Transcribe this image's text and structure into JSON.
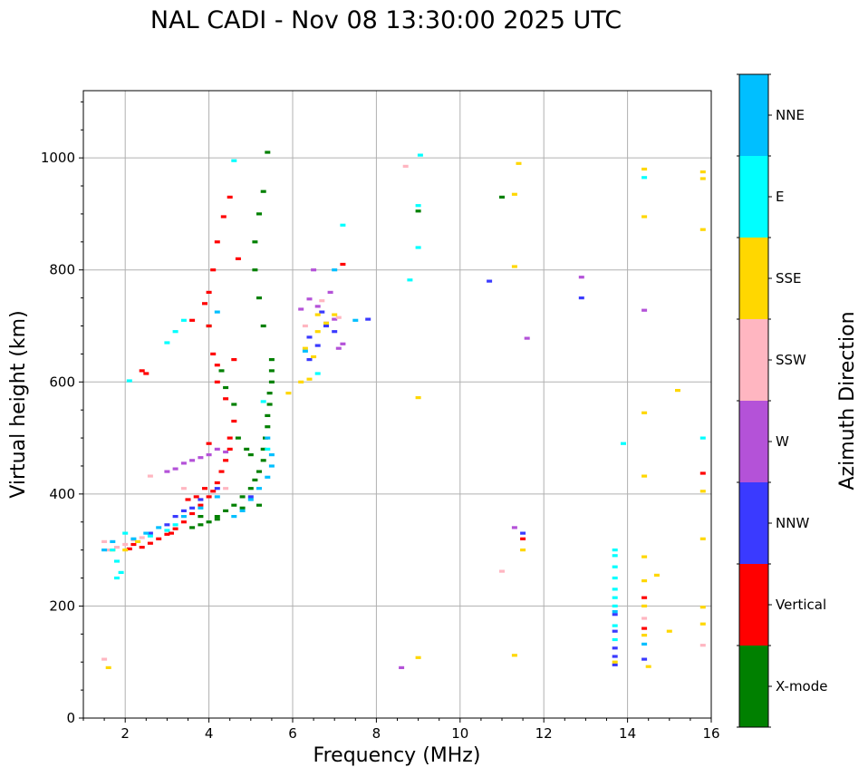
{
  "chart_data": {
    "type": "scatter",
    "title": "NAL CADI - Nov 08 13:30:00 2025 UTC",
    "xlabel": "Frequency (MHz)",
    "ylabel": "Virtual height (km)",
    "xlim": [
      1,
      16
    ],
    "ylim": [
      0,
      1120
    ],
    "xticks": [
      2,
      4,
      6,
      8,
      10,
      12,
      14,
      16
    ],
    "yticks": [
      0,
      200,
      400,
      600,
      800,
      1000
    ],
    "grid": true,
    "colorbar": {
      "label": "Azimuth Direction",
      "categories": [
        "X-mode",
        "Vertical",
        "NNW",
        "W",
        "SSW",
        "SSE",
        "E",
        "NNE"
      ],
      "colors": [
        "#008000",
        "#ff0000",
        "#3a3aff",
        "#b452d8",
        "#ffb6c1",
        "#ffd700",
        "#00ffff",
        "#00bfff"
      ]
    },
    "series": [
      {
        "name": "X-mode",
        "points": [
          [
            3.6,
            340
          ],
          [
            3.8,
            345
          ],
          [
            4.0,
            350
          ],
          [
            4.2,
            360
          ],
          [
            4.4,
            370
          ],
          [
            4.6,
            380
          ],
          [
            4.8,
            395
          ],
          [
            5.0,
            410
          ],
          [
            5.1,
            425
          ],
          [
            5.2,
            440
          ],
          [
            5.3,
            460
          ],
          [
            5.3,
            480
          ],
          [
            5.35,
            500
          ],
          [
            5.4,
            520
          ],
          [
            5.4,
            540
          ],
          [
            5.45,
            560
          ],
          [
            5.45,
            580
          ],
          [
            5.5,
            600
          ],
          [
            5.5,
            620
          ],
          [
            5.5,
            640
          ],
          [
            5.3,
            700
          ],
          [
            5.2,
            750
          ],
          [
            5.1,
            800
          ],
          [
            5.1,
            850
          ],
          [
            5.2,
            900
          ],
          [
            5.3,
            940
          ],
          [
            5.4,
            1010
          ],
          [
            5.0,
            470
          ],
          [
            4.9,
            480
          ],
          [
            4.7,
            500
          ],
          [
            4.6,
            560
          ],
          [
            4.4,
            590
          ],
          [
            4.3,
            620
          ],
          [
            4.0,
            700
          ],
          [
            3.8,
            360
          ],
          [
            4.2,
            355
          ],
          [
            9.0,
            905
          ],
          [
            11.0,
            930
          ],
          [
            5.2,
            380
          ],
          [
            4.8,
            375
          ]
        ]
      },
      {
        "name": "Vertical",
        "points": [
          [
            2.1,
            302
          ],
          [
            2.2,
            310
          ],
          [
            2.4,
            305
          ],
          [
            2.6,
            312
          ],
          [
            2.8,
            320
          ],
          [
            3.0,
            328
          ],
          [
            3.2,
            338
          ],
          [
            3.4,
            350
          ],
          [
            3.6,
            365
          ],
          [
            3.8,
            380
          ],
          [
            4.0,
            395
          ],
          [
            4.1,
            405
          ],
          [
            4.2,
            420
          ],
          [
            4.3,
            440
          ],
          [
            4.4,
            460
          ],
          [
            4.5,
            480
          ],
          [
            4.5,
            500
          ],
          [
            4.6,
            530
          ],
          [
            4.4,
            570
          ],
          [
            4.2,
            600
          ],
          [
            4.2,
            630
          ],
          [
            4.1,
            650
          ],
          [
            4.0,
            700
          ],
          [
            3.9,
            740
          ],
          [
            4.0,
            760
          ],
          [
            4.1,
            800
          ],
          [
            4.2,
            850
          ],
          [
            4.35,
            895
          ],
          [
            4.5,
            930
          ],
          [
            2.4,
            620
          ],
          [
            2.5,
            615
          ],
          [
            4.7,
            820
          ],
          [
            4.6,
            640
          ],
          [
            3.1,
            330
          ],
          [
            3.5,
            390
          ],
          [
            3.7,
            395
          ],
          [
            3.9,
            410
          ],
          [
            7.2,
            810
          ],
          [
            11.5,
            320
          ],
          [
            14.4,
            160
          ],
          [
            14.4,
            215
          ],
          [
            15.8,
            437
          ],
          [
            4.0,
            490
          ],
          [
            3.6,
            710
          ]
        ]
      },
      {
        "name": "NNW",
        "points": [
          [
            2.6,
            330
          ],
          [
            3.0,
            345
          ],
          [
            3.2,
            360
          ],
          [
            3.4,
            370
          ],
          [
            3.6,
            375
          ],
          [
            3.8,
            390
          ],
          [
            4.2,
            410
          ],
          [
            6.4,
            680
          ],
          [
            6.6,
            665
          ],
          [
            6.8,
            700
          ],
          [
            7.0,
            690
          ],
          [
            6.4,
            640
          ],
          [
            7.8,
            712
          ],
          [
            10.7,
            780
          ],
          [
            12.9,
            750
          ],
          [
            11.5,
            330
          ],
          [
            13.7,
            95
          ],
          [
            13.7,
            110
          ],
          [
            13.7,
            125
          ],
          [
            13.7,
            155
          ],
          [
            13.7,
            185
          ],
          [
            14.4,
            105
          ],
          [
            5.0,
            395
          ],
          [
            6.7,
            725
          ]
        ]
      },
      {
        "name": "W",
        "points": [
          [
            3.0,
            440
          ],
          [
            3.2,
            445
          ],
          [
            3.4,
            455
          ],
          [
            3.6,
            460
          ],
          [
            3.8,
            465
          ],
          [
            4.0,
            470
          ],
          [
            4.2,
            480
          ],
          [
            4.4,
            475
          ],
          [
            6.2,
            730
          ],
          [
            6.4,
            748
          ],
          [
            6.6,
            735
          ],
          [
            6.8,
            705
          ],
          [
            7.0,
            712
          ],
          [
            7.2,
            668
          ],
          [
            6.5,
            800
          ],
          [
            12.9,
            787
          ],
          [
            14.4,
            728
          ],
          [
            11.6,
            678
          ],
          [
            11.3,
            340
          ],
          [
            8.6,
            90
          ],
          [
            6.9,
            760
          ],
          [
            7.1,
            660
          ]
        ]
      },
      {
        "name": "SSW",
        "points": [
          [
            1.5,
            105
          ],
          [
            1.5,
            315
          ],
          [
            1.6,
            300
          ],
          [
            1.8,
            305
          ],
          [
            2.0,
            310
          ],
          [
            2.2,
            318
          ],
          [
            2.4,
            322
          ],
          [
            2.6,
            432
          ],
          [
            3.4,
            410
          ],
          [
            4.4,
            410
          ],
          [
            8.7,
            985
          ],
          [
            11.0,
            262
          ],
          [
            14.4,
            178
          ],
          [
            15.8,
            130
          ],
          [
            6.3,
            700
          ],
          [
            6.7,
            745
          ],
          [
            7.1,
            715
          ]
        ]
      },
      {
        "name": "SSE",
        "points": [
          [
            1.6,
            90
          ],
          [
            1.7,
            300
          ],
          [
            2.0,
            300
          ],
          [
            2.3,
            315
          ],
          [
            6.2,
            600
          ],
          [
            6.4,
            605
          ],
          [
            6.5,
            645
          ],
          [
            6.6,
            690
          ],
          [
            6.8,
            705
          ],
          [
            7.0,
            720
          ],
          [
            6.3,
            660
          ],
          [
            6.6,
            720
          ],
          [
            9.0,
            572
          ],
          [
            9.0,
            108
          ],
          [
            11.3,
            935
          ],
          [
            11.3,
            806
          ],
          [
            11.4,
            990
          ],
          [
            11.5,
            300
          ],
          [
            11.3,
            112
          ],
          [
            13.7,
            100
          ],
          [
            14.4,
            980
          ],
          [
            14.4,
            895
          ],
          [
            14.4,
            545
          ],
          [
            14.4,
            432
          ],
          [
            14.4,
            288
          ],
          [
            14.4,
            245
          ],
          [
            14.5,
            92
          ],
          [
            14.4,
            148
          ],
          [
            14.4,
            200
          ],
          [
            14.7,
            255
          ],
          [
            15.2,
            585
          ],
          [
            15.0,
            155
          ],
          [
            15.8,
            975
          ],
          [
            15.8,
            963
          ],
          [
            15.8,
            872
          ],
          [
            15.8,
            405
          ],
          [
            15.8,
            320
          ],
          [
            15.8,
            198
          ],
          [
            15.8,
            168
          ],
          [
            5.9,
            580
          ]
        ]
      },
      {
        "name": "E",
        "points": [
          [
            1.7,
            300
          ],
          [
            1.8,
            280
          ],
          [
            1.9,
            260
          ],
          [
            1.8,
            250
          ],
          [
            2.0,
            330
          ],
          [
            2.6,
            325
          ],
          [
            3.0,
            335
          ],
          [
            3.2,
            345
          ],
          [
            2.1,
            602
          ],
          [
            3.0,
            670
          ],
          [
            3.2,
            690
          ],
          [
            3.4,
            710
          ],
          [
            5.3,
            565
          ],
          [
            5.4,
            480
          ],
          [
            9.05,
            1005
          ],
          [
            9.0,
            840
          ],
          [
            9.0,
            915
          ],
          [
            8.8,
            782
          ],
          [
            13.7,
            140
          ],
          [
            13.7,
            165
          ],
          [
            13.7,
            200
          ],
          [
            13.7,
            215
          ],
          [
            13.7,
            230
          ],
          [
            13.7,
            250
          ],
          [
            13.7,
            270
          ],
          [
            13.7,
            290
          ],
          [
            13.7,
            300
          ],
          [
            13.9,
            490
          ],
          [
            14.4,
            965
          ],
          [
            15.8,
            500
          ],
          [
            7.2,
            880
          ],
          [
            6.6,
            615
          ],
          [
            4.6,
            995
          ]
        ]
      },
      {
        "name": "NNE",
        "points": [
          [
            1.5,
            300
          ],
          [
            1.7,
            315
          ],
          [
            2.2,
            320
          ],
          [
            2.5,
            330
          ],
          [
            2.8,
            340
          ],
          [
            3.4,
            360
          ],
          [
            3.8,
            375
          ],
          [
            4.2,
            395
          ],
          [
            4.6,
            360
          ],
          [
            4.8,
            370
          ],
          [
            5.0,
            390
          ],
          [
            5.2,
            410
          ],
          [
            5.4,
            430
          ],
          [
            5.5,
            450
          ],
          [
            5.5,
            470
          ],
          [
            5.4,
            500
          ],
          [
            4.2,
            725
          ],
          [
            6.3,
            655
          ],
          [
            7.0,
            800
          ],
          [
            7.5,
            710
          ],
          [
            14.4,
            132
          ],
          [
            13.7,
            190
          ]
        ]
      }
    ]
  }
}
